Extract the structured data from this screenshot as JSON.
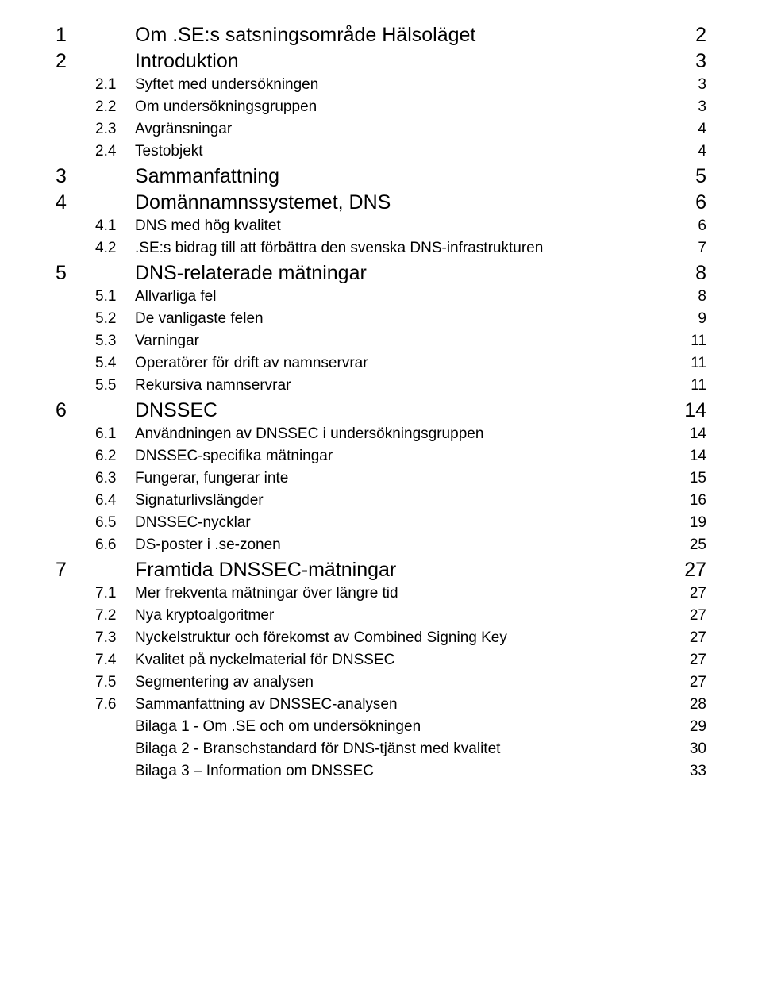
{
  "toc": [
    {
      "kind": "chapter",
      "num": "1",
      "title": "Om .SE:s satsningsområde Hälsoläget",
      "page": "2"
    },
    {
      "kind": "chapter",
      "num": "2",
      "title": "Introduktion",
      "page": "3"
    },
    {
      "kind": "section",
      "num": "2.1",
      "title": "Syftet med undersökningen",
      "page": "3"
    },
    {
      "kind": "section",
      "num": "2.2",
      "title": "Om undersökningsgruppen",
      "page": "3"
    },
    {
      "kind": "section",
      "num": "2.3",
      "title": "Avgränsningar",
      "page": "4"
    },
    {
      "kind": "section",
      "num": "2.4",
      "title": "Testobjekt",
      "page": "4"
    },
    {
      "kind": "chapter",
      "num": "3",
      "title": "Sammanfattning",
      "page": "5"
    },
    {
      "kind": "chapter",
      "num": "4",
      "title": "Domännamnssystemet, DNS",
      "page": "6"
    },
    {
      "kind": "section",
      "num": "4.1",
      "title": "DNS med hög kvalitet",
      "page": "6"
    },
    {
      "kind": "section",
      "num": "4.2",
      "title": ".SE:s bidrag till att förbättra den svenska DNS-infrastrukturen",
      "page": "7"
    },
    {
      "kind": "chapter",
      "num": "5",
      "title": "DNS-relaterade mätningar",
      "page": "8"
    },
    {
      "kind": "section",
      "num": "5.1",
      "title": "Allvarliga fel",
      "page": "8"
    },
    {
      "kind": "section",
      "num": "5.2",
      "title": "De vanligaste felen",
      "page": "9"
    },
    {
      "kind": "section",
      "num": "5.3",
      "title": "Varningar",
      "page": "11"
    },
    {
      "kind": "section",
      "num": "5.4",
      "title": "Operatörer för drift av namnservrar",
      "page": "11"
    },
    {
      "kind": "section",
      "num": "5.5",
      "title": "Rekursiva namnservrar",
      "page": "11"
    },
    {
      "kind": "chapter",
      "num": "6",
      "title": "DNSSEC",
      "page": "14"
    },
    {
      "kind": "section",
      "num": "6.1",
      "title": "Användningen av DNSSEC i undersökningsgruppen",
      "page": "14"
    },
    {
      "kind": "section",
      "num": "6.2",
      "title": "DNSSEC-specifika mätningar",
      "page": "14"
    },
    {
      "kind": "section",
      "num": "6.3",
      "title": "Fungerar, fungerar inte",
      "page": "15"
    },
    {
      "kind": "section",
      "num": "6.4",
      "title": "Signaturlivslängder",
      "page": "16"
    },
    {
      "kind": "section",
      "num": "6.5",
      "title": "DNSSEC-nycklar",
      "page": "19"
    },
    {
      "kind": "section",
      "num": "6.6",
      "title": "DS-poster i .se-zonen",
      "page": "25"
    },
    {
      "kind": "chapter",
      "num": "7",
      "title": "Framtida DNSSEC-mätningar",
      "page": "27"
    },
    {
      "kind": "section",
      "num": "7.1",
      "title": "Mer frekventa mätningar över längre tid",
      "page": "27"
    },
    {
      "kind": "section",
      "num": "7.2",
      "title": "Nya kryptoalgoritmer",
      "page": "27"
    },
    {
      "kind": "section",
      "num": "7.3",
      "title": "Nyckelstruktur och förekomst av Combined Signing Key",
      "page": "27"
    },
    {
      "kind": "section",
      "num": "7.4",
      "title": "Kvalitet på nyckelmaterial för DNSSEC",
      "page": "27"
    },
    {
      "kind": "section",
      "num": "7.5",
      "title": "Segmentering av analysen",
      "page": "27"
    },
    {
      "kind": "section",
      "num": "7.6",
      "title": "Sammanfattning av DNSSEC-analysen",
      "page": "28"
    },
    {
      "kind": "appendix",
      "title": "Bilaga 1 - Om .SE och om undersökningen",
      "page": "29"
    },
    {
      "kind": "appendix",
      "title": "Bilaga 2 - Branschstandard för DNS-tjänst med kvalitet",
      "page": "30"
    },
    {
      "kind": "appendix",
      "title": "Bilaga 3 – Information om DNSSEC",
      "page": "33"
    }
  ]
}
